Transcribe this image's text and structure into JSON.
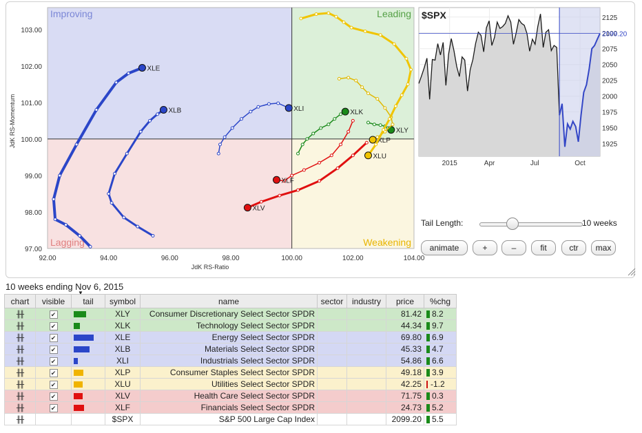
{
  "chart_data": [
    {
      "type": "scatter",
      "title": "",
      "xlabel": "JdK RS-Ratio",
      "ylabel": "JdK RS-Momentum",
      "xlim": [
        92,
        104
      ],
      "ylim": [
        97,
        103.6
      ],
      "x_ticks": [
        "92.00",
        "94.00",
        "96.00",
        "98.00",
        "100.00",
        "102.00",
        "104.00"
      ],
      "y_ticks": [
        "97.00",
        "98.00",
        "99.00",
        "100.00",
        "101.00",
        "102.00",
        "103.00"
      ],
      "center": [
        100,
        100
      ],
      "quadrants": [
        {
          "label": "Improving",
          "color": "#d9dcf4",
          "label_color": "#7a86d6"
        },
        {
          "label": "Leading",
          "color": "#dcf0d9",
          "label_color": "#55a046"
        },
        {
          "label": "Weakening",
          "color": "#fbf6e0",
          "label_color": "#e8b400"
        },
        {
          "label": "Lagging",
          "color": "#f8e1e1",
          "label_color": "#e08080"
        }
      ],
      "series": [
        {
          "name": "XLY",
          "color": "#1a8a1a",
          "width": 1.5,
          "head_color": "#1a8a1a",
          "points": [
            [
              102.5,
              100.45
            ],
            [
              102.7,
              100.4
            ],
            [
              102.9,
              100.38
            ],
            [
              103.05,
              100.35
            ],
            [
              103.15,
              100.3
            ],
            [
              103.25,
              100.25
            ]
          ]
        },
        {
          "name": "XLK",
          "color": "#1a8a1a",
          "width": 1.5,
          "head_color": "#1a8a1a",
          "points": [
            [
              100.2,
              99.6
            ],
            [
              100.35,
              99.85
            ],
            [
              100.5,
              100.0
            ],
            [
              100.7,
              100.15
            ],
            [
              100.95,
              100.3
            ],
            [
              101.2,
              100.4
            ],
            [
              101.4,
              100.55
            ],
            [
              101.6,
              100.68
            ],
            [
              101.75,
              100.75
            ]
          ]
        },
        {
          "name": "XLE",
          "color": "#2b46c8",
          "width": 4,
          "head_color": "#2b46c8",
          "points": [
            [
              93.4,
              97.05
            ],
            [
              93.05,
              97.35
            ],
            [
              92.6,
              97.65
            ],
            [
              92.25,
              97.8
            ],
            [
              92.2,
              98.35
            ],
            [
              92.4,
              99.0
            ],
            [
              92.95,
              99.85
            ],
            [
              93.6,
              100.8
            ],
            [
              94.25,
              101.55
            ],
            [
              94.65,
              101.8
            ],
            [
              95.1,
              101.95
            ]
          ]
        },
        {
          "name": "XLB",
          "color": "#2b46c8",
          "width": 3,
          "head_color": "#2b46c8",
          "points": [
            [
              95.45,
              97.35
            ],
            [
              94.95,
              97.6
            ],
            [
              94.5,
              97.85
            ],
            [
              94.1,
              98.25
            ],
            [
              94.0,
              98.5
            ],
            [
              94.2,
              99.05
            ],
            [
              94.6,
              99.6
            ],
            [
              95.05,
              100.2
            ],
            [
              95.35,
              100.5
            ],
            [
              95.6,
              100.68
            ],
            [
              95.8,
              100.8
            ]
          ]
        },
        {
          "name": "XLI",
          "color": "#2b46c8",
          "width": 1.5,
          "head_color": "#2b46c8",
          "points": [
            [
              97.6,
              99.6
            ],
            [
              97.65,
              99.85
            ],
            [
              97.8,
              100.05
            ],
            [
              98.05,
              100.3
            ],
            [
              98.35,
              100.55
            ],
            [
              98.65,
              100.75
            ],
            [
              98.9,
              100.88
            ],
            [
              99.25,
              100.96
            ],
            [
              99.55,
              100.98
            ],
            [
              99.9,
              100.85
            ]
          ]
        },
        {
          "name": "XLP",
          "color": "#e0b800",
          "width": 1.5,
          "head_color": "#f0c400",
          "points": [
            [
              101.55,
              101.65
            ],
            [
              101.85,
              101.68
            ],
            [
              102.1,
              101.6
            ],
            [
              102.3,
              101.42
            ],
            [
              102.5,
              101.25
            ],
            [
              102.8,
              101.1
            ],
            [
              103.05,
              100.85
            ],
            [
              103.25,
              100.6
            ],
            [
              103.3,
              100.4
            ],
            [
              103.05,
              100.2
            ],
            [
              102.8,
              100.05
            ],
            [
              102.65,
              99.98
            ]
          ]
        },
        {
          "name": "XLU",
          "color": "#f0c400",
          "width": 3,
          "head_color": "#f0c400",
          "points": [
            [
              100.3,
              103.3
            ],
            [
              100.8,
              103.42
            ],
            [
              101.2,
              103.45
            ],
            [
              101.45,
              103.35
            ],
            [
              101.7,
              103.2
            ],
            [
              101.95,
              103.05
            ],
            [
              102.4,
              102.95
            ],
            [
              102.9,
              102.85
            ],
            [
              103.35,
              102.6
            ],
            [
              103.75,
              102.2
            ],
            [
              103.9,
              101.9
            ],
            [
              103.8,
              101.5
            ],
            [
              103.6,
              101.2
            ],
            [
              103.4,
              100.9
            ],
            [
              103.2,
              100.55
            ],
            [
              103.0,
              100.25
            ],
            [
              102.75,
              99.85
            ],
            [
              102.5,
              99.55
            ]
          ]
        },
        {
          "name": "XLF",
          "color": "#e01010",
          "width": 1.5,
          "head_color": "#e01010",
          "points": [
            [
              102.0,
              100.5
            ],
            [
              101.85,
              100.2
            ],
            [
              101.6,
              99.85
            ],
            [
              101.3,
              99.55
            ],
            [
              100.9,
              99.35
            ],
            [
              100.4,
              99.15
            ],
            [
              100.0,
              99.0
            ],
            [
              99.75,
              98.85
            ],
            [
              99.5,
              98.88
            ]
          ]
        },
        {
          "name": "XLV",
          "color": "#e01010",
          "width": 3,
          "head_color": "#e01010",
          "points": [
            [
              102.45,
              99.9
            ],
            [
              102.0,
              99.55
            ],
            [
              101.5,
              99.2
            ],
            [
              100.9,
              98.85
            ],
            [
              100.2,
              98.6
            ],
            [
              99.6,
              98.45
            ],
            [
              99.0,
              98.28
            ],
            [
              98.55,
              98.12
            ]
          ]
        }
      ]
    },
    {
      "type": "line",
      "title": "$SPX",
      "x_ticks": [
        "2015",
        "Apr",
        "Jul",
        "Oct"
      ],
      "y_ticks": [
        "2125",
        "2100",
        "2075",
        "2050",
        "2025",
        "2000",
        "1975",
        "1950",
        "1925"
      ],
      "ylim": [
        1905,
        2140
      ],
      "current_label": "2099.20",
      "line_color": "#1a1a1a",
      "tail_color": "#3346c6",
      "values": [
        2020,
        2032,
        2045,
        2060,
        1995,
        2058,
        2057,
        2083,
        2065,
        2085,
        2017,
        2066,
        2091,
        2072,
        2047,
        2031,
        2062,
        2057,
        2008,
        2042,
        2058,
        2083,
        2101,
        2096,
        2070,
        2108,
        2119,
        2080,
        2093,
        2117,
        2107,
        2110,
        2115,
        2127,
        2117,
        2082,
        2100,
        2121,
        2115,
        2112,
        2099,
        2071,
        2090,
        2082,
        2110,
        2130,
        2077,
        2101,
        2105,
        2072,
        2080,
        2077,
        1970,
        1988,
        1920,
        1956,
        1948,
        1960,
        1952,
        1928,
        1970,
        2006,
        2018,
        2043,
        2075,
        2080,
        2090,
        2099.2
      ],
      "tail_start_index": 52
    }
  ],
  "controls": {
    "tail_length_label": "Tail Length:",
    "tail_value": "10 weeks",
    "tail_fraction": 0.32,
    "buttons": [
      "animate",
      "+",
      "–",
      "fit",
      "ctr",
      "max"
    ]
  },
  "table": {
    "period_label": "10 weeks ending Nov 6, 2015",
    "headers": [
      "chart",
      "visible",
      "tail",
      "symbol",
      "name",
      "sector",
      "industry",
      "price",
      "%chg"
    ],
    "rows": [
      {
        "symbol": "XLY",
        "name": "Consumer Discretionary Select Sector SPDR",
        "price": "81.42",
        "chg": "8.2",
        "bg": "#cde8c8",
        "tail_color": "#1a8a1a",
        "tail_fraction": 0.6,
        "checked": true
      },
      {
        "symbol": "XLK",
        "name": "Technology Select Sector SPDR",
        "price": "44.34",
        "chg": "9.7",
        "bg": "#cde8c8",
        "tail_color": "#1a8a1a",
        "tail_fraction": 0.3,
        "checked": true
      },
      {
        "symbol": "XLE",
        "name": "Energy Select Sector SPDR",
        "price": "69.80",
        "chg": "6.9",
        "bg": "#d4d8f4",
        "tail_color": "#2b46c8",
        "tail_fraction": 0.95,
        "checked": true
      },
      {
        "symbol": "XLB",
        "name": "Materials Select Sector SPDR",
        "price": "45.33",
        "chg": "4.7",
        "bg": "#d4d8f4",
        "tail_color": "#2b46c8",
        "tail_fraction": 0.75,
        "checked": true
      },
      {
        "symbol": "XLI",
        "name": "Industrials Select Sector SPDR",
        "price": "54.86",
        "chg": "6.6",
        "bg": "#d4d8f4",
        "tail_color": "#2b46c8",
        "tail_fraction": 0.2,
        "checked": true
      },
      {
        "symbol": "XLP",
        "name": "Consumer Staples Select Sector SPDR",
        "price": "49.18",
        "chg": "3.9",
        "bg": "#fbf1cc",
        "tail_color": "#f0b400",
        "tail_fraction": 0.45,
        "checked": true
      },
      {
        "symbol": "XLU",
        "name": "Utilities Select Sector SPDR",
        "price": "42.25",
        "chg": "-1.2",
        "bg": "#fbf1cc",
        "tail_color": "#f0b400",
        "tail_fraction": 0.42,
        "checked": true
      },
      {
        "symbol": "XLV",
        "name": "Health Care Select Sector SPDR",
        "price": "71.75",
        "chg": "0.3",
        "bg": "#f4cccc",
        "tail_color": "#e01010",
        "tail_fraction": 0.42,
        "checked": true
      },
      {
        "symbol": "XLF",
        "name": "Financials Select Sector SPDR",
        "price": "24.73",
        "chg": "5.2",
        "bg": "#f4cccc",
        "tail_color": "#e01010",
        "tail_fraction": 0.5,
        "checked": true
      },
      {
        "symbol": "$SPX",
        "name": "S&P 500 Large Cap Index",
        "price": "2099.20",
        "chg": "5.5",
        "bg": "#ffffff",
        "tail_color": "",
        "tail_fraction": 0,
        "checked": false
      }
    ]
  }
}
